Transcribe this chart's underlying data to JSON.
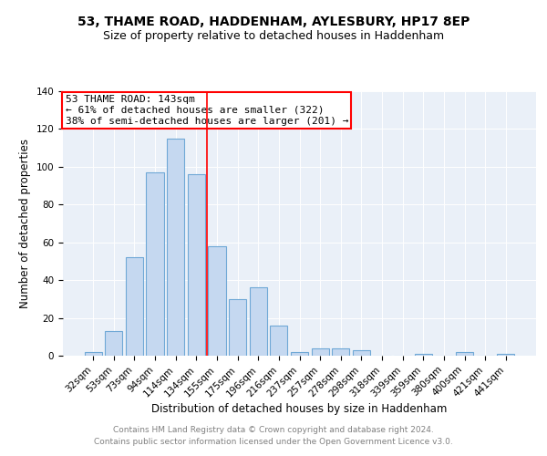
{
  "title": "53, THAME ROAD, HADDENHAM, AYLESBURY, HP17 8EP",
  "subtitle": "Size of property relative to detached houses in Haddenham",
  "xlabel": "Distribution of detached houses by size in Haddenham",
  "ylabel": "Number of detached properties",
  "categories": [
    "32sqm",
    "53sqm",
    "73sqm",
    "94sqm",
    "114sqm",
    "134sqm",
    "155sqm",
    "175sqm",
    "196sqm",
    "216sqm",
    "237sqm",
    "257sqm",
    "278sqm",
    "298sqm",
    "318sqm",
    "339sqm",
    "359sqm",
    "380sqm",
    "400sqm",
    "421sqm",
    "441sqm"
  ],
  "values": [
    2,
    13,
    52,
    97,
    115,
    96,
    58,
    30,
    36,
    16,
    2,
    4,
    4,
    3,
    0,
    0,
    1,
    0,
    2,
    0,
    1
  ],
  "bar_color": "#c5d8f0",
  "bar_edge_color": "#6fa8d6",
  "vline_x": 5.5,
  "vline_color": "red",
  "annotation_lines": [
    "53 THAME ROAD: 143sqm",
    "← 61% of detached houses are smaller (322)",
    "38% of semi-detached houses are larger (201) →"
  ],
  "annotation_box_color": "white",
  "annotation_box_edge_color": "red",
  "ylim": [
    0,
    140
  ],
  "yticks": [
    0,
    20,
    40,
    60,
    80,
    100,
    120,
    140
  ],
  "footer1": "Contains HM Land Registry data © Crown copyright and database right 2024.",
  "footer2": "Contains public sector information licensed under the Open Government Licence v3.0.",
  "plot_bg_color": "#eaf0f8",
  "title_fontsize": 10,
  "subtitle_fontsize": 9,
  "axis_label_fontsize": 8.5,
  "tick_fontsize": 7.5,
  "annotation_fontsize": 8,
  "footer_fontsize": 6.5
}
